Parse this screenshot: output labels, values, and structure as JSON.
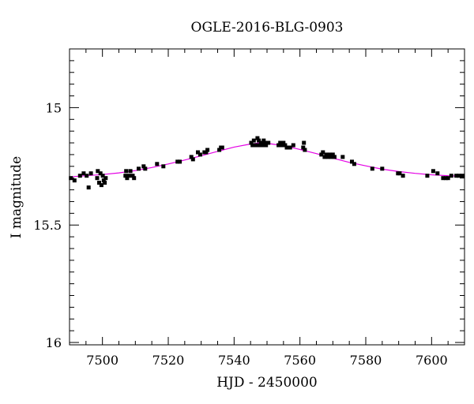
{
  "chart_data": {
    "type": "scatter",
    "title": "OGLE-2016-BLG-0903",
    "xlabel": "HJD - 2450000",
    "ylabel": "I magnitude",
    "xlim": [
      7490,
      7610
    ],
    "ylim": [
      16.01,
      14.75
    ],
    "y_inverted": true,
    "x_ticks": [
      7500,
      7520,
      7540,
      7560,
      7580,
      7600
    ],
    "x_tick_labels": [
      "7500",
      "7520",
      "7540",
      "7560",
      "7580",
      "7600"
    ],
    "y_ticks": [
      15,
      15.5,
      16
    ],
    "y_tick_labels": [
      "15",
      "15.5",
      "16"
    ],
    "grid": false,
    "series": [
      {
        "kind": "points",
        "color": "#000000",
        "points": [
          [
            7490.4,
            15.3
          ],
          [
            7491.5,
            15.31
          ],
          [
            7493.2,
            15.29
          ],
          [
            7494.3,
            15.28
          ],
          [
            7495.2,
            15.29
          ],
          [
            7495.8,
            15.34
          ],
          [
            7496.5,
            15.28
          ],
          [
            7498.4,
            15.3
          ],
          [
            7498.6,
            15.27
          ],
          [
            7499.0,
            15.32
          ],
          [
            7499.4,
            15.28
          ],
          [
            7499.7,
            15.33
          ],
          [
            7500.1,
            15.29
          ],
          [
            7500.4,
            15.31
          ],
          [
            7500.7,
            15.32
          ],
          [
            7501.0,
            15.3
          ],
          [
            7507.0,
            15.29
          ],
          [
            7507.2,
            15.27
          ],
          [
            7507.5,
            15.3
          ],
          [
            7508.1,
            15.29
          ],
          [
            7508.5,
            15.27
          ],
          [
            7509.2,
            15.29
          ],
          [
            7509.6,
            15.3
          ],
          [
            7511.0,
            15.26
          ],
          [
            7512.5,
            15.25
          ],
          [
            7513.0,
            15.26
          ],
          [
            7516.6,
            15.24
          ],
          [
            7518.5,
            15.25
          ],
          [
            7522.8,
            15.23
          ],
          [
            7523.5,
            15.23
          ],
          [
            7527.0,
            15.21
          ],
          [
            7527.5,
            15.22
          ],
          [
            7529.0,
            15.19
          ],
          [
            7529.7,
            15.2
          ],
          [
            7531.0,
            15.19
          ],
          [
            7531.5,
            15.19
          ],
          [
            7531.9,
            15.18
          ],
          [
            7535.5,
            15.18
          ],
          [
            7536.0,
            15.17
          ],
          [
            7536.4,
            15.17
          ],
          [
            7545.2,
            15.15
          ],
          [
            7545.6,
            15.16
          ],
          [
            7546.0,
            15.14
          ],
          [
            7546.4,
            15.16
          ],
          [
            7546.8,
            15.16
          ],
          [
            7547.1,
            15.13
          ],
          [
            7547.5,
            15.14
          ],
          [
            7547.8,
            15.16
          ],
          [
            7548.2,
            15.15
          ],
          [
            7548.6,
            15.16
          ],
          [
            7549.0,
            15.14
          ],
          [
            7549.4,
            15.15
          ],
          [
            7549.7,
            15.16
          ],
          [
            7550.0,
            15.15
          ],
          [
            7550.4,
            15.15
          ],
          [
            7553.5,
            15.16
          ],
          [
            7554.0,
            15.15
          ],
          [
            7554.5,
            15.16
          ],
          [
            7555.0,
            15.15
          ],
          [
            7555.5,
            15.16
          ],
          [
            7556.0,
            15.17
          ],
          [
            7557.0,
            15.17
          ],
          [
            7558.0,
            15.16
          ],
          [
            7561.0,
            15.17
          ],
          [
            7561.5,
            15.18
          ],
          [
            7561.2,
            15.15
          ],
          [
            7566.5,
            15.2
          ],
          [
            7567.0,
            15.19
          ],
          [
            7567.5,
            15.21
          ],
          [
            7568.0,
            15.2
          ],
          [
            7568.5,
            15.21
          ],
          [
            7569.0,
            15.2
          ],
          [
            7569.5,
            15.21
          ],
          [
            7570.0,
            15.2
          ],
          [
            7570.5,
            15.21
          ],
          [
            7573.0,
            15.21
          ],
          [
            7575.8,
            15.23
          ],
          [
            7576.5,
            15.24
          ],
          [
            7582.0,
            15.26
          ],
          [
            7585.0,
            15.26
          ],
          [
            7589.8,
            15.28
          ],
          [
            7590.3,
            15.28
          ],
          [
            7591.3,
            15.29
          ],
          [
            7598.7,
            15.29
          ],
          [
            7600.5,
            15.27
          ],
          [
            7601.8,
            15.28
          ],
          [
            7603.5,
            15.3
          ],
          [
            7604.3,
            15.3
          ],
          [
            7605.0,
            15.3
          ],
          [
            7606.0,
            15.29
          ],
          [
            7607.5,
            15.29
          ],
          [
            7608.3,
            15.29
          ],
          [
            7609.3,
            15.29
          ]
        ]
      },
      {
        "kind": "model",
        "color": "#e400e4",
        "points": [
          [
            7490,
            15.295
          ],
          [
            7495,
            15.29
          ],
          [
            7500,
            15.285
          ],
          [
            7505,
            15.278
          ],
          [
            7510,
            15.268
          ],
          [
            7515,
            15.255
          ],
          [
            7520,
            15.24
          ],
          [
            7525,
            15.223
          ],
          [
            7530,
            15.205
          ],
          [
            7535,
            15.186
          ],
          [
            7540,
            15.168
          ],
          [
            7545,
            15.155
          ],
          [
            7548,
            15.15
          ],
          [
            7550,
            15.152
          ],
          [
            7555,
            15.162
          ],
          [
            7560,
            15.178
          ],
          [
            7565,
            15.196
          ],
          [
            7570,
            15.215
          ],
          [
            7575,
            15.233
          ],
          [
            7580,
            15.248
          ],
          [
            7585,
            15.262
          ],
          [
            7590,
            15.272
          ],
          [
            7595,
            15.28
          ],
          [
            7600,
            15.286
          ],
          [
            7605,
            15.29
          ],
          [
            7610,
            15.292
          ]
        ]
      }
    ]
  }
}
